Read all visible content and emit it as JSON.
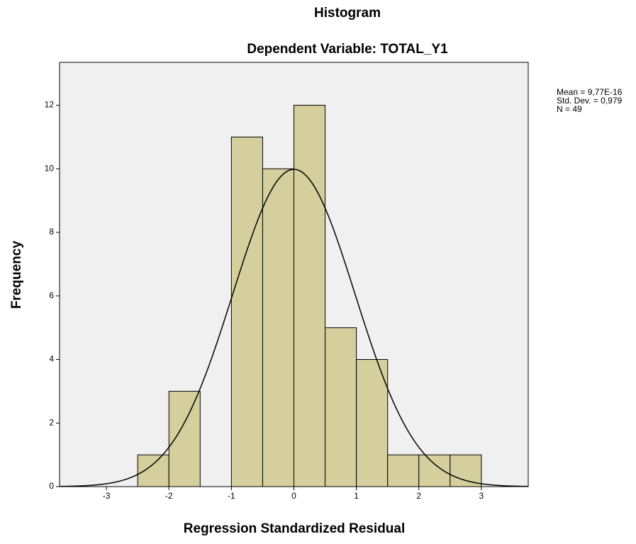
{
  "chart_data": {
    "type": "histogram",
    "title": "Histogram",
    "subtitle": "Dependent Variable: TOTAL_Y1",
    "xlabel": "Regression Standardized Residual",
    "ylabel": "Frequency",
    "bins": [
      -2.5,
      -2,
      -1.5,
      -1,
      -0.5,
      0,
      0.5,
      1,
      1.5,
      2,
      2.5,
      3
    ],
    "counts": [
      1,
      3,
      0,
      11,
      10,
      12,
      5,
      4,
      1,
      1,
      1
    ],
    "color": "#d4cf9c",
    "curve_color": "#000000",
    "xlim": [
      -3.75,
      3.75
    ],
    "ylim": [
      0,
      13.35
    ],
    "xticks": [
      -3,
      -2,
      -1,
      0,
      1,
      2,
      3
    ],
    "yticks": [
      0,
      2,
      4,
      6,
      8,
      10,
      12
    ],
    "stats": [
      {
        "value": 9.77e-16,
        "label": "Mean = 9,77E-16"
      },
      {
        "value": 0.979,
        "label": "Std. Dev. = 0,979"
      },
      {
        "value": 49,
        "label": "N = 49"
      }
    ]
  }
}
